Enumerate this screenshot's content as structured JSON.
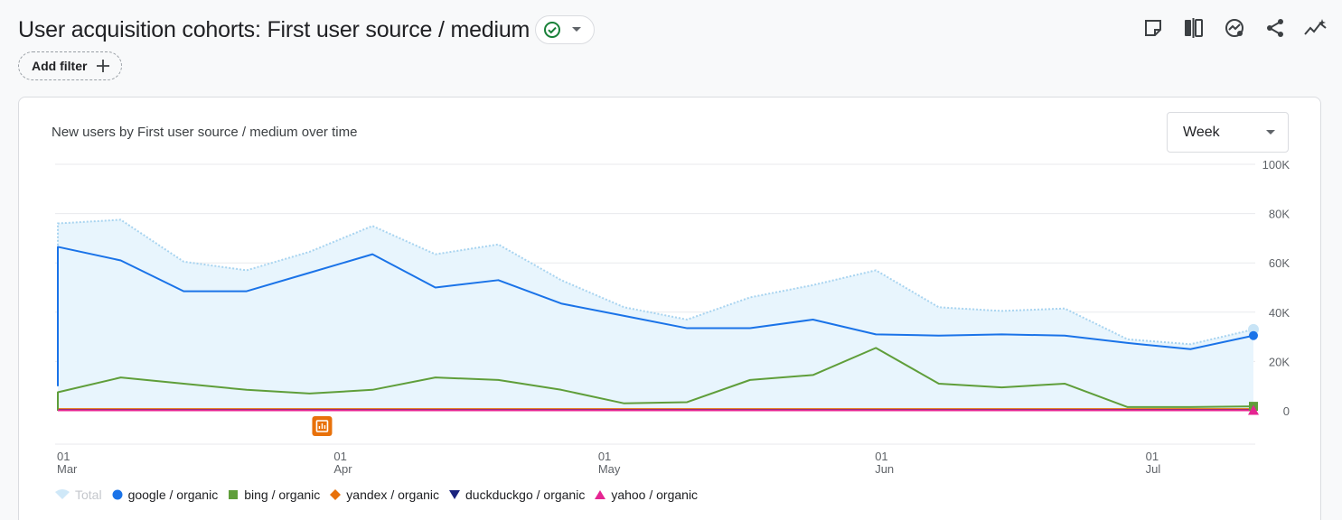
{
  "header": {
    "title": "User acquisition cohorts: First user source / medium",
    "toolbar": [
      "note-icon",
      "compare-icon",
      "insights-icon",
      "share-icon",
      "anomaly-icon"
    ]
  },
  "filters": {
    "add_filter_label": "Add filter"
  },
  "card": {
    "title": "New users by First user source / medium over time",
    "period_select": {
      "value": "Week"
    }
  },
  "colors": {
    "total": "#a8d4f0",
    "total_fill": "#e8f5fd",
    "google": "#1a73e8",
    "bing": "#5f9e3a",
    "yandex": "#e8710a",
    "duckduckgo": "#1a237e",
    "yahoo": "#e52592",
    "annotation": "#e8710a"
  },
  "chart_data": {
    "type": "line",
    "y_ticks": [
      "0",
      "20K",
      "40K",
      "60K",
      "80K",
      "100K"
    ],
    "ylim": [
      0,
      100000
    ],
    "x_ticks": [
      {
        "day": "01",
        "month": "Mar",
        "week_index": 0
      },
      {
        "day": "01",
        "month": "Apr",
        "week_index": 4.4
      },
      {
        "day": "01",
        "month": "May",
        "week_index": 8.6
      },
      {
        "day": "01",
        "month": "Jun",
        "week_index": 13
      },
      {
        "day": "01",
        "month": "Jul",
        "week_index": 17.3
      }
    ],
    "series": [
      {
        "name": "Total",
        "key": "total",
        "style": "area",
        "values": [
          76000,
          77500,
          60500,
          57000,
          64500,
          75000,
          63500,
          67500,
          53000,
          42000,
          37000,
          46000,
          51000,
          57000,
          42000,
          40500,
          41500,
          29000,
          27000,
          33000
        ]
      },
      {
        "name": "google / organic",
        "key": "google",
        "marker": "circle",
        "values": [
          66500,
          61000,
          48500,
          48500,
          56000,
          63500,
          50000,
          53000,
          43500,
          38500,
          33500,
          33500,
          37000,
          31000,
          30500,
          31000,
          30500,
          27500,
          25000,
          30500
        ]
      },
      {
        "name": "bing / organic",
        "key": "bing",
        "marker": "square",
        "values": [
          7500,
          13500,
          11000,
          8500,
          7000,
          8500,
          13500,
          12500,
          8500,
          3000,
          3500,
          12500,
          14500,
          25500,
          11000,
          9500,
          11000,
          1500,
          1500,
          1800
        ]
      },
      {
        "name": "yandex / organic",
        "key": "yandex",
        "marker": "diamond",
        "values": [
          700,
          700,
          700,
          700,
          700,
          700,
          700,
          700,
          700,
          700,
          700,
          700,
          700,
          700,
          700,
          700,
          700,
          700,
          700,
          700
        ]
      },
      {
        "name": "duckduckgo / organic",
        "key": "duckduckgo",
        "marker": "triangle-down",
        "values": [
          300,
          300,
          300,
          300,
          300,
          300,
          300,
          300,
          300,
          300,
          300,
          300,
          300,
          300,
          300,
          300,
          300,
          300,
          300,
          300
        ]
      },
      {
        "name": "yahoo / organic",
        "key": "yahoo",
        "marker": "triangle-up",
        "values": [
          200,
          200,
          200,
          200,
          200,
          200,
          200,
          200,
          200,
          200,
          200,
          200,
          200,
          200,
          200,
          200,
          200,
          200,
          200,
          200
        ]
      }
    ],
    "start_value_google": 10000,
    "start_value_bing": 0,
    "annotation_week_index": 4.2,
    "legend": [
      {
        "label": "Total",
        "key": "total",
        "marker": "total",
        "muted": true
      },
      {
        "label": "google / organic",
        "key": "google",
        "marker": "circle"
      },
      {
        "label": "bing / organic",
        "key": "bing",
        "marker": "square"
      },
      {
        "label": "yandex / organic",
        "key": "yandex",
        "marker": "diamond"
      },
      {
        "label": "duckduckgo / organic",
        "key": "duckduckgo",
        "marker": "triangle-down"
      },
      {
        "label": "yahoo / organic",
        "key": "yahoo",
        "marker": "triangle-up"
      }
    ]
  }
}
